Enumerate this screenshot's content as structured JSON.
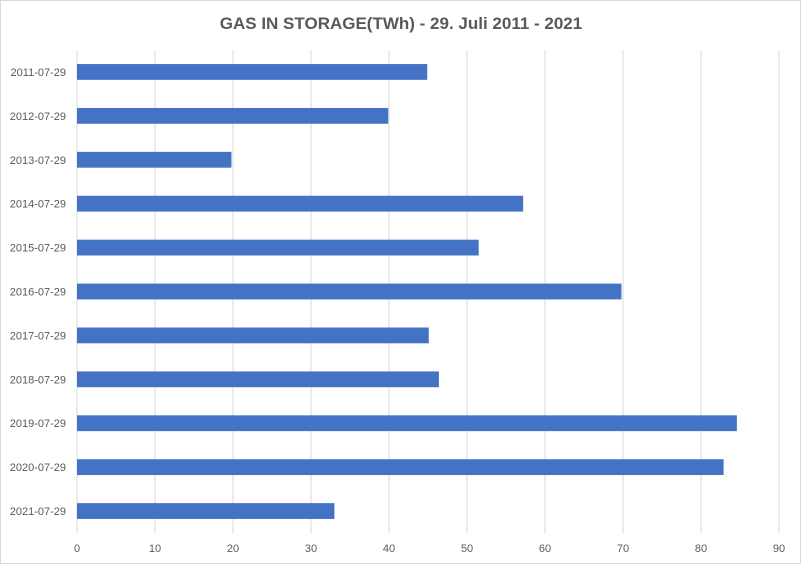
{
  "chart_data": {
    "type": "bar",
    "orientation": "horizontal",
    "title": "GAS IN STORAGE(TWh) - 29. Juli 2011 - 2021",
    "xlabel": "",
    "ylabel": "",
    "categories": [
      "2011-07-29",
      "2012-07-29",
      "2013-07-29",
      "2014-07-29",
      "2015-07-29",
      "2016-07-29",
      "2017-07-29",
      "2018-07-29",
      "2019-07-29",
      "2020-07-29",
      "2021-07-29"
    ],
    "values": [
      44.9,
      39.9,
      19.8,
      57.2,
      51.5,
      69.8,
      45.1,
      46.4,
      84.6,
      82.9,
      33.0
    ],
    "xlim": [
      0,
      90
    ],
    "xticks": [
      0,
      10,
      20,
      30,
      40,
      50,
      60,
      70,
      80,
      90
    ],
    "grid": "vertical",
    "legend": "none",
    "bar_color": "#4472c4"
  }
}
